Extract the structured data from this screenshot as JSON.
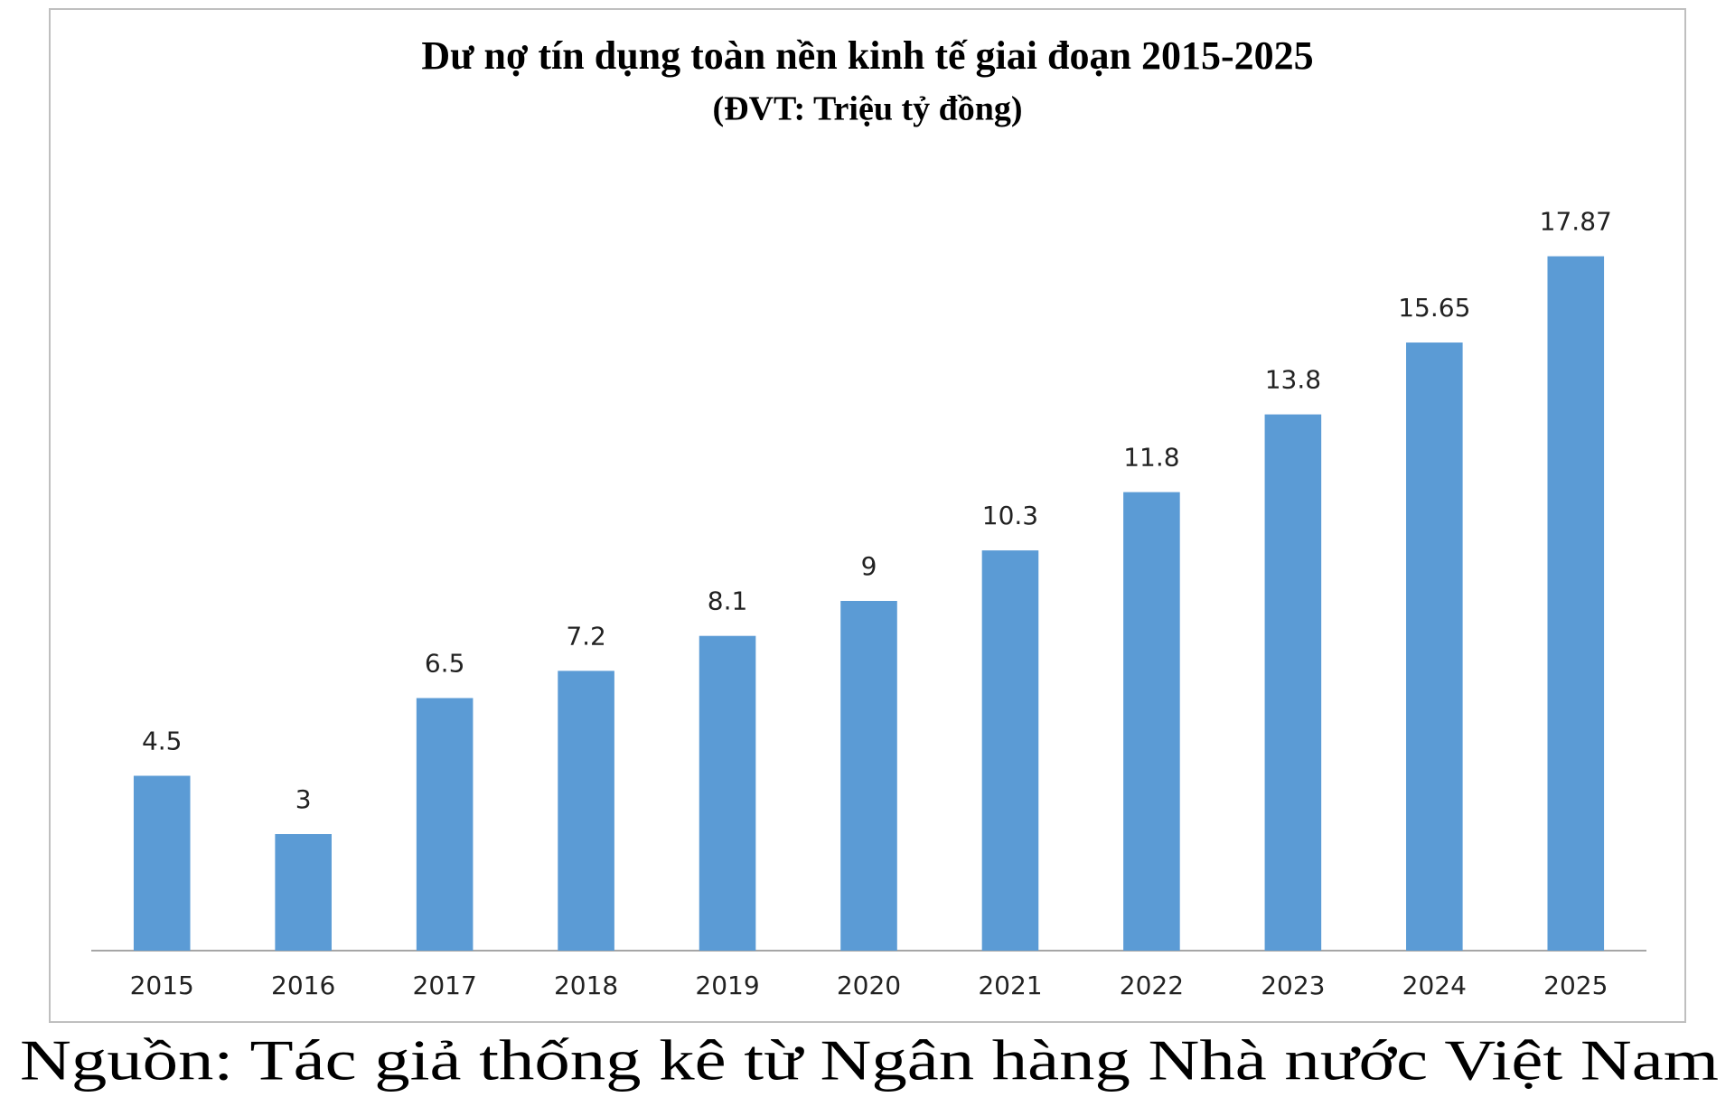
{
  "chart_data": {
    "type": "bar",
    "title": "Dư nợ tín dụng toàn nền kinh tế giai đoạn 2015-2025",
    "subtitle": "(ĐVT: Triệu tỷ đồng)",
    "categories": [
      "2015",
      "2016",
      "2017",
      "2018",
      "2019",
      "2020",
      "2021",
      "2022",
      "2023",
      "2024",
      "2025"
    ],
    "values": [
      4.5,
      3,
      6.5,
      7.2,
      8.1,
      9,
      10.3,
      11.8,
      13.8,
      15.65,
      17.87
    ],
    "color": "#5b9bd5",
    "ylim": [
      0,
      20
    ]
  },
  "source": "Nguồn: Tác giả thống kê từ Ngân hàng Nhà nước Việt Nam"
}
